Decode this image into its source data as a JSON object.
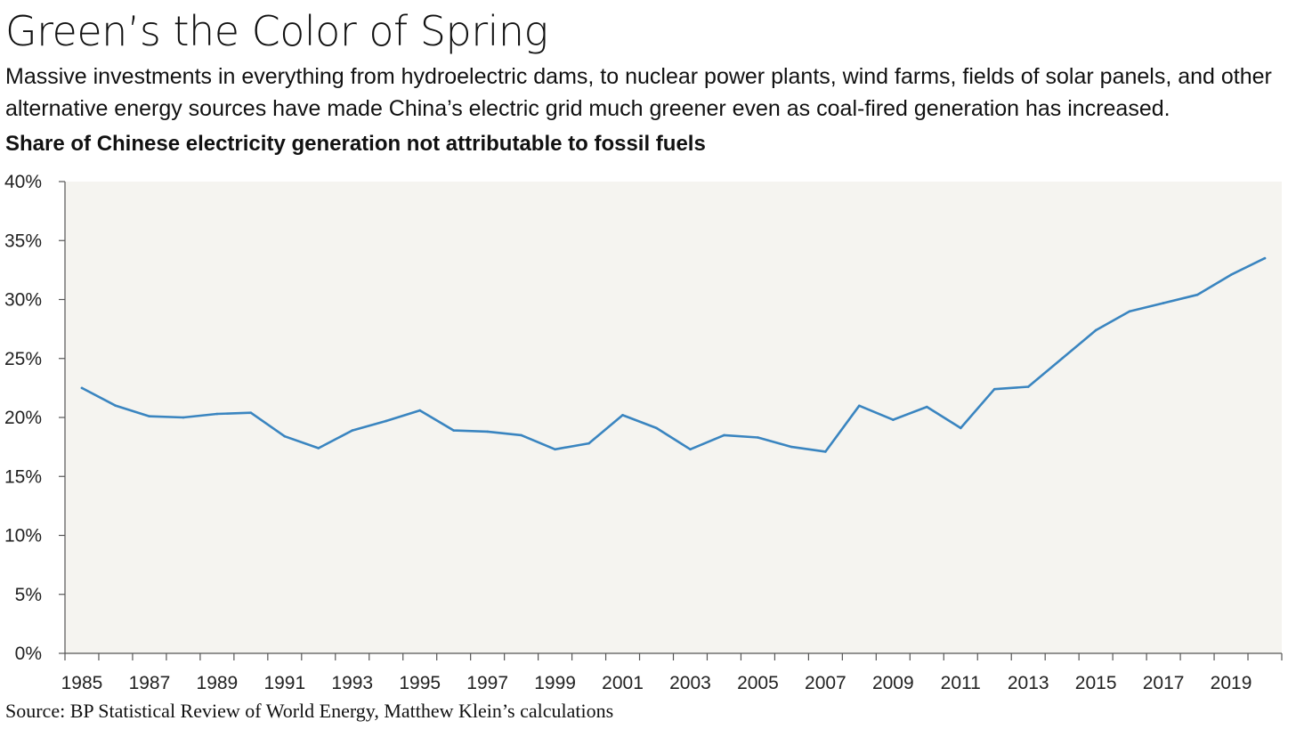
{
  "header": {
    "title": "Green’s the Color of Spring",
    "subtitle": "Massive investments in everything from hydroelectric dams, to nuclear power plants, wind farms, fields of solar panels, and other alternative energy sources have made China’s electric grid much greener even as coal-fired generation has increased.",
    "chart_heading": "Share of Chinese electricity generation not attributable to fossil fuels"
  },
  "footer": {
    "source": "Source: BP Statistical Review of World Energy, Matthew Klein’s calculations"
  },
  "colors": {
    "line": "#3a85c0",
    "plot_background": "#f5f4f0",
    "axis": "#555555"
  },
  "chart_data": {
    "type": "line",
    "title": "Share of Chinese electricity generation not attributable to fossil fuels",
    "xlabel": "",
    "ylabel": "",
    "xlim": [
      1985,
      2020
    ],
    "ylim": [
      0,
      40
    ],
    "y_ticks": [
      "0%",
      "5%",
      "10%",
      "15%",
      "20%",
      "25%",
      "30%",
      "35%",
      "40%"
    ],
    "x_ticks": [
      "1985",
      "1987",
      "1989",
      "1991",
      "1993",
      "1995",
      "1997",
      "1999",
      "2001",
      "2003",
      "2005",
      "2007",
      "2009",
      "2011",
      "2013",
      "2015",
      "2017",
      "2019"
    ],
    "grid": false,
    "legend": "none",
    "series": [
      {
        "x": [
          1985,
          1986,
          1987,
          1988,
          1989,
          1990,
          1991,
          1992,
          1993,
          1994,
          1995,
          1996,
          1997,
          1998,
          1999,
          2000,
          2001,
          2002,
          2003,
          2004,
          2005,
          2006,
          2007,
          2008,
          2009,
          2010,
          2011,
          2012,
          2013,
          2014,
          2015,
          2016,
          2017,
          2018,
          2019,
          2020
        ],
        "values": [
          22.5,
          21.0,
          20.1,
          20.0,
          20.3,
          20.4,
          18.4,
          17.4,
          18.9,
          19.7,
          20.6,
          18.9,
          18.8,
          18.5,
          17.3,
          17.8,
          20.2,
          19.1,
          17.3,
          18.5,
          18.3,
          17.5,
          17.1,
          21.0,
          19.8,
          20.9,
          19.1,
          22.4,
          22.6,
          25.0,
          27.4,
          29.0,
          29.7,
          30.4,
          32.1,
          33.5
        ]
      }
    ]
  }
}
